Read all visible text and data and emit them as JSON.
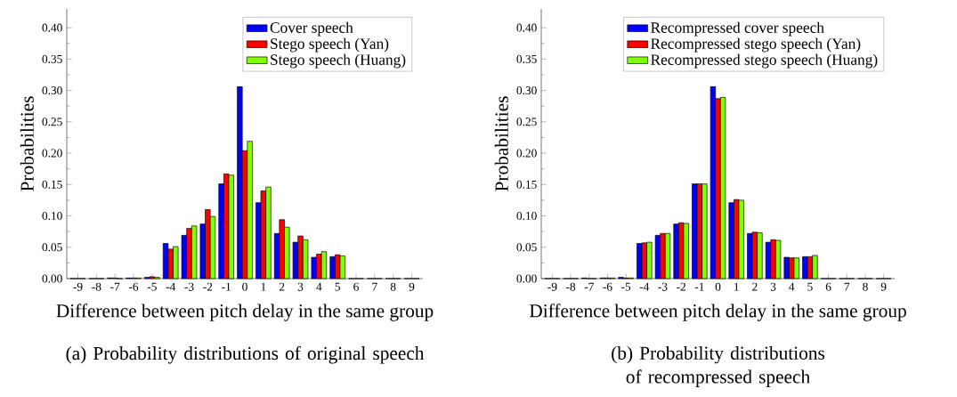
{
  "chart_data": [
    {
      "type": "bar",
      "xlabel": "Difference between pitch delay in the same group",
      "ylabel": "Probabilities",
      "categories": [
        "-9",
        "-8",
        "-7",
        "-6",
        "-5",
        "-4",
        "-3",
        "-2",
        "-1",
        "0",
        "1",
        "2",
        "3",
        "4",
        "5",
        "6",
        "7",
        "8",
        "9"
      ],
      "series": [
        {
          "name": "Cover speech",
          "color": "#0000ff",
          "values": [
            0,
            0,
            0.001,
            0.001,
            0.002,
            0.056,
            0.069,
            0.087,
            0.151,
            0.306,
            0.121,
            0.072,
            0.058,
            0.034,
            0.035,
            0,
            0,
            0,
            0
          ]
        },
        {
          "name": "Stego speech (Yan)",
          "color": "#ff0000",
          "values": [
            0,
            0,
            0.001,
            0.001,
            0.003,
            0.047,
            0.08,
            0.11,
            0.167,
            0.204,
            0.14,
            0.094,
            0.068,
            0.039,
            0.038,
            0,
            0,
            0,
            0
          ]
        },
        {
          "name": "Stego speech (Huang)",
          "color": "#80ff00",
          "values": [
            0,
            0,
            0,
            0.001,
            0.002,
            0.051,
            0.084,
            0.099,
            0.165,
            0.219,
            0.146,
            0.082,
            0.062,
            0.043,
            0.036,
            0,
            0,
            0,
            0
          ]
        }
      ],
      "ylim": [
        0,
        0.43
      ],
      "yticks": [
        {
          "value": 0,
          "label": "0.00"
        },
        {
          "value": 0.05,
          "label": "0.05"
        },
        {
          "value": 0.1,
          "label": "0.10"
        },
        {
          "value": 0.15,
          "label": "0.15"
        },
        {
          "value": 0.2,
          "label": "0.20"
        },
        {
          "value": 0.25,
          "label": "0.25"
        },
        {
          "value": 0.3,
          "label": "0.30"
        },
        {
          "value": 0.35,
          "label": "0.35"
        },
        {
          "value": 0.4,
          "label": "0.40"
        }
      ],
      "legend": "top right",
      "annotations": [
        "(a) Probability distributions of original speech"
      ]
    },
    {
      "type": "bar",
      "xlabel": "Difference between pitch delay in the same group",
      "ylabel": "Probabilities",
      "categories": [
        "-9",
        "-8",
        "-7",
        "-6",
        "-5",
        "-4",
        "-3",
        "-2",
        "-1",
        "0",
        "1",
        "2",
        "3",
        "4",
        "5",
        "6",
        "7",
        "8",
        "9"
      ],
      "series": [
        {
          "name": "Recompressed cover speech",
          "color": "#0000ff",
          "values": [
            0,
            0,
            0.001,
            0.001,
            0.002,
            0.056,
            0.069,
            0.087,
            0.151,
            0.306,
            0.121,
            0.072,
            0.058,
            0.034,
            0.035,
            0,
            0,
            0,
            0
          ]
        },
        {
          "name": "Recompressed stego speech (Yan)",
          "color": "#ff0000",
          "values": [
            0,
            0,
            0,
            0.001,
            0.001,
            0.057,
            0.072,
            0.089,
            0.151,
            0.287,
            0.126,
            0.074,
            0.062,
            0.033,
            0.035,
            0,
            0,
            0,
            0
          ]
        },
        {
          "name": "Recompressed stego speech (Huang)",
          "color": "#80ff00",
          "values": [
            0,
            0,
            0,
            0.001,
            0.001,
            0.058,
            0.072,
            0.088,
            0.151,
            0.289,
            0.125,
            0.073,
            0.061,
            0.033,
            0.037,
            0,
            0,
            0,
            0
          ]
        }
      ],
      "ylim": [
        0,
        0.43
      ],
      "yticks": [
        {
          "value": 0,
          "label": "0.00"
        },
        {
          "value": 0.05,
          "label": "0.05"
        },
        {
          "value": 0.1,
          "label": "0.10"
        },
        {
          "value": 0.15,
          "label": "0.15"
        },
        {
          "value": 0.2,
          "label": "0.20"
        },
        {
          "value": 0.25,
          "label": "0.25"
        },
        {
          "value": 0.3,
          "label": "0.30"
        },
        {
          "value": 0.35,
          "label": "0.35"
        },
        {
          "value": 0.4,
          "label": "0.40"
        }
      ],
      "legend": "top right",
      "annotations": [
        "(b) Probability distributions of recompressed speech"
      ]
    }
  ]
}
